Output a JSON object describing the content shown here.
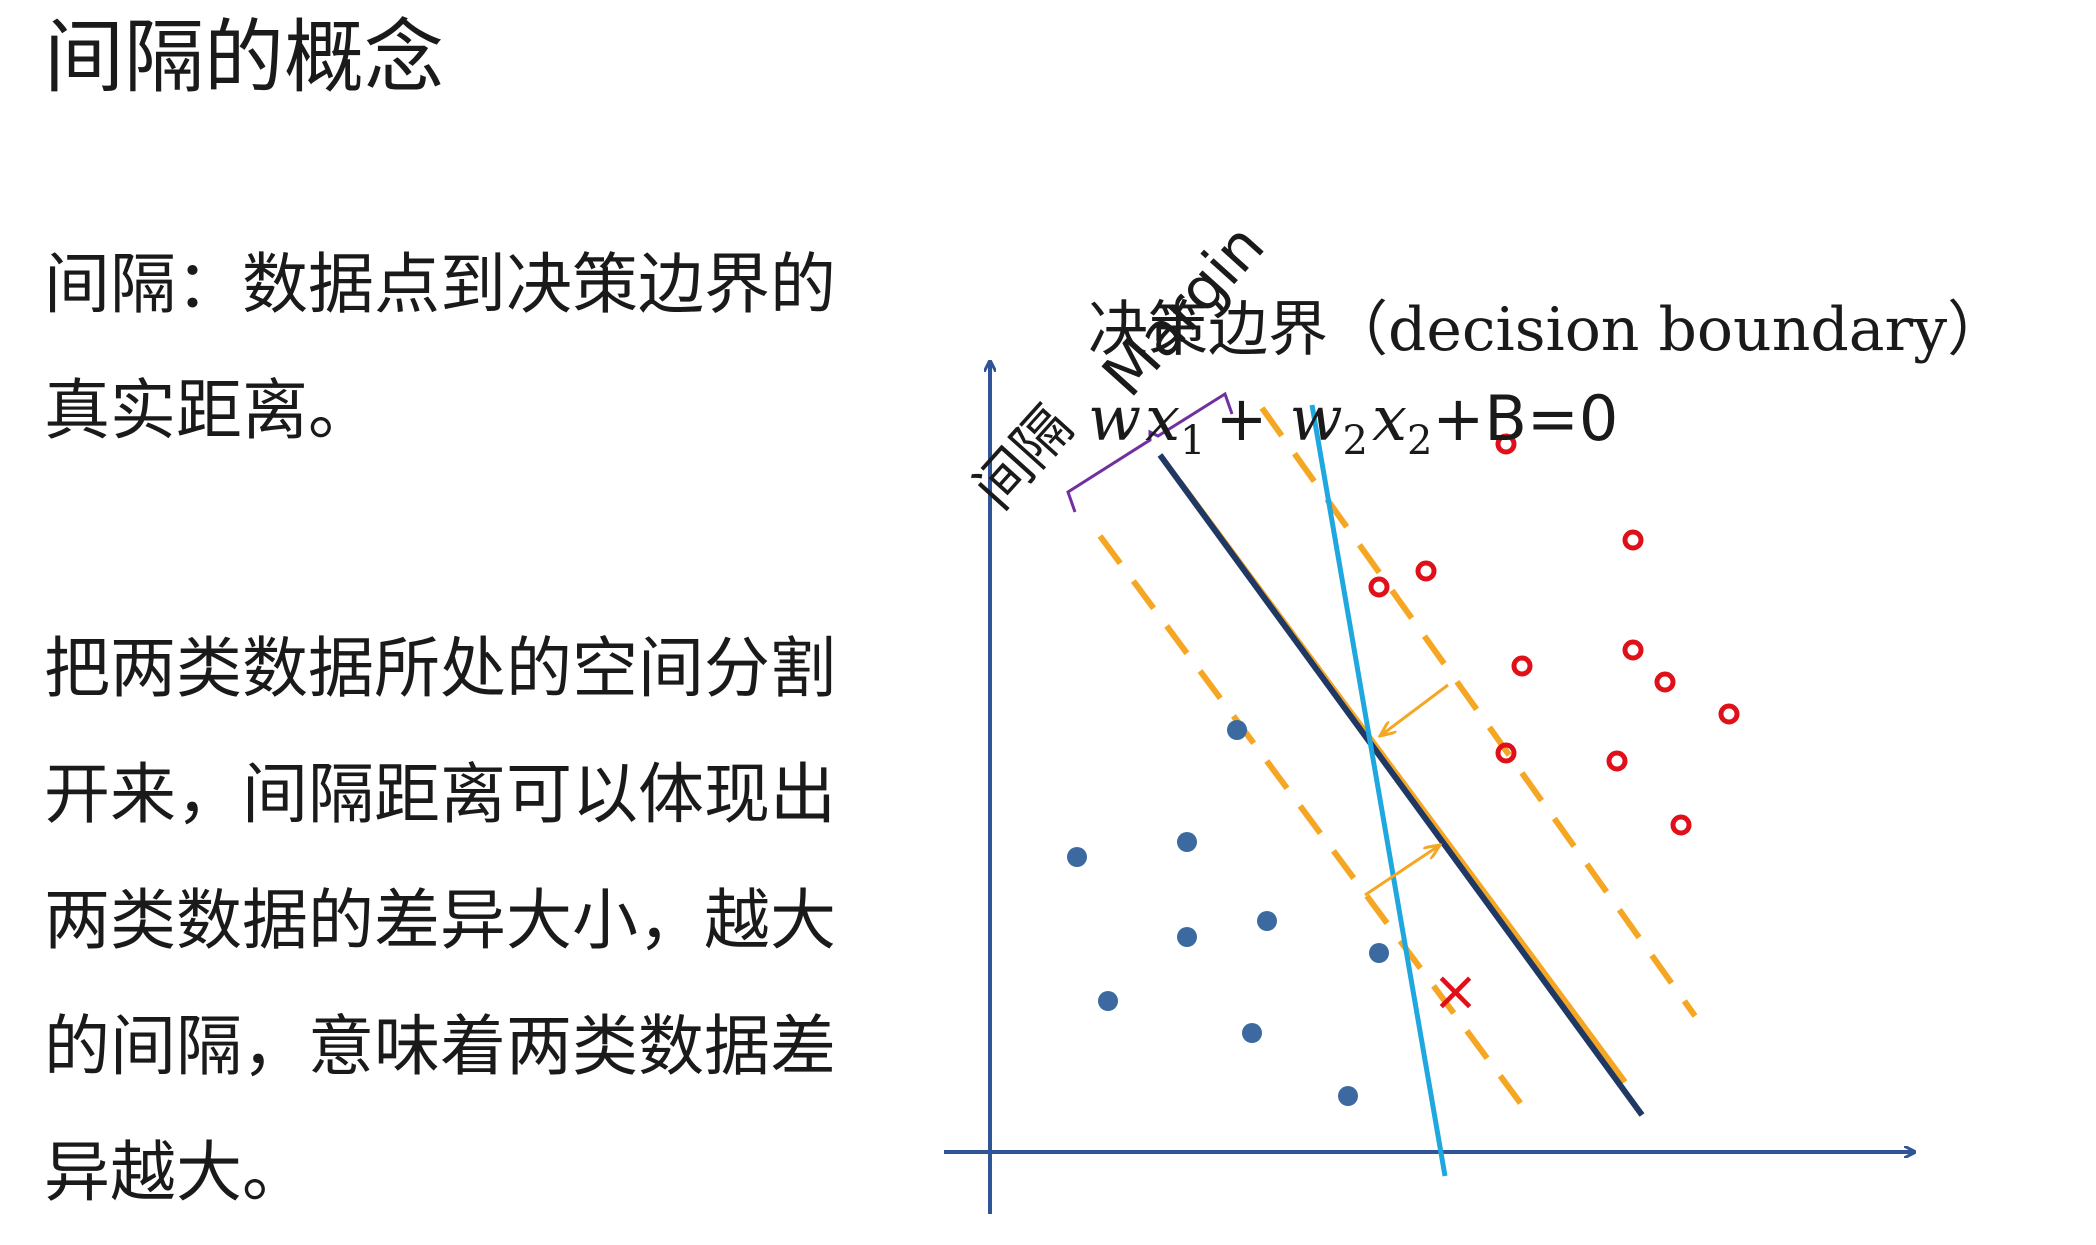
{
  "title": "间隔的概念",
  "paragraphs": [
    "间隔：数据点到决策边界的真实距离。",
    "把两类数据所处的空间分割开来，间隔距离可以体现出两类数据的差异大小，越大的间隔，意味着两类数据差异越大。"
  ],
  "diagram": {
    "boundary_label": "决策边界（decision boundary）",
    "equation": {
      "w1": "w",
      "x1": "x",
      "sub1": "1",
      "plus": "+",
      "w2": "w",
      "sub2": "2",
      "x2": "x",
      "tail": "+B=0"
    },
    "margin_label_cn": "间隔",
    "margin_label_en": "Margin",
    "misclassified_mark": "×",
    "colors": {
      "axis": "#2f5597",
      "boundary_dark": "#1f3864",
      "boundary_orange": "#f5a623",
      "margin_dashed": "#f5a623",
      "alt_boundary": "#1fa7e0",
      "class_a": "#3c6aa0",
      "class_b": "#e0101a",
      "brace": "#7030a0"
    }
  }
}
